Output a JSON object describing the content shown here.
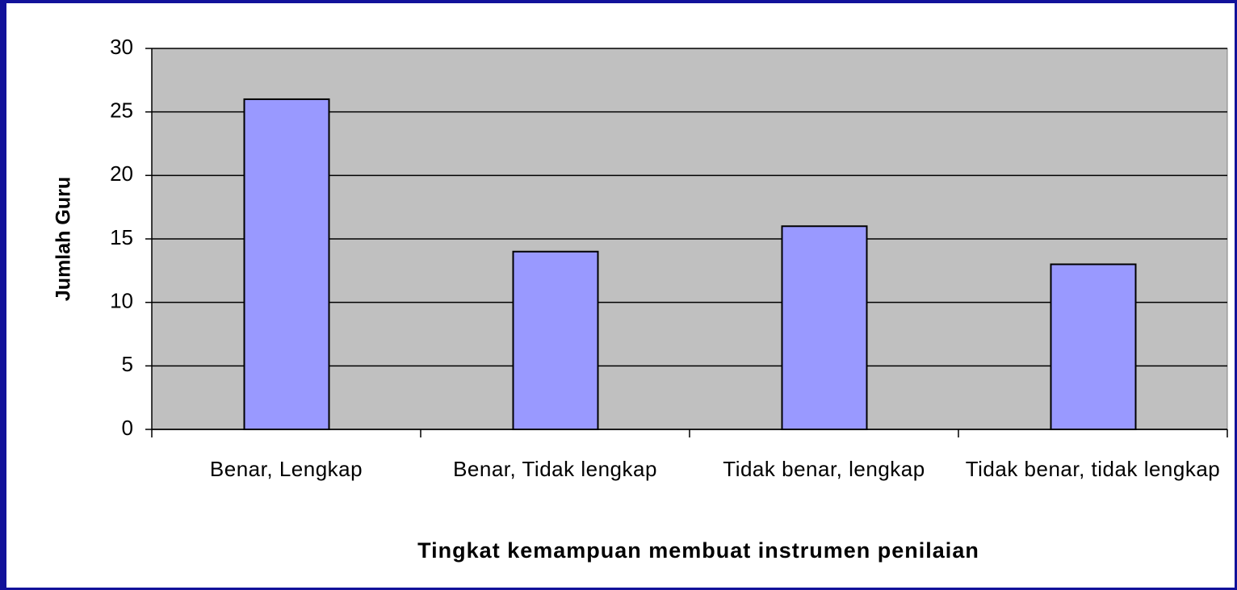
{
  "chart_data": {
    "type": "bar",
    "categories": [
      "Benar, Lengkap",
      "Benar, Tidak lengkap",
      "Tidak benar, lengkap",
      "Tidak benar, tidak lengkap"
    ],
    "values": [
      26,
      14,
      16,
      13
    ],
    "color": "#9999ff",
    "ylim": [
      0,
      30
    ],
    "yticks": [
      0,
      5,
      10,
      15,
      20,
      25,
      30
    ],
    "grid": true,
    "ylabel": "Jumlah Guru",
    "xlabel": "Tingkat kemampuan membuat instrumen penilaian"
  }
}
